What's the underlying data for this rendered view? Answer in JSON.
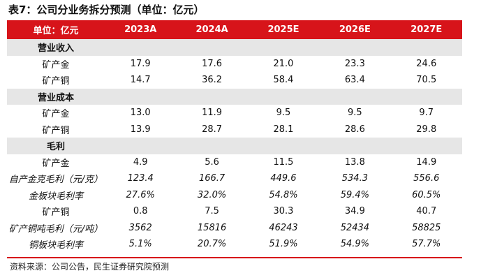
{
  "title": "表7：公司分业务拆分预测（单位：亿元）",
  "header": [
    "单位：亿元",
    "2023A",
    "2024A",
    "2025E",
    "2026E",
    "2027E"
  ],
  "rows": [
    {
      "kind": "section",
      "label": "营业收入",
      "values": [
        "",
        "",
        "",
        "",
        ""
      ]
    },
    {
      "kind": "data",
      "label": "矿产金",
      "values": [
        "17.9",
        "17.6",
        "21.0",
        "23.3",
        "24.6"
      ]
    },
    {
      "kind": "data",
      "label": "矿产铜",
      "values": [
        "14.7",
        "36.2",
        "58.4",
        "63.4",
        "70.5"
      ]
    },
    {
      "kind": "section",
      "label": "营业成本",
      "values": [
        "",
        "",
        "",
        "",
        ""
      ]
    },
    {
      "kind": "data",
      "label": "矿产金",
      "values": [
        "13.0",
        "11.9",
        "9.5",
        "9.5",
        "9.7"
      ]
    },
    {
      "kind": "data",
      "label": "矿产铜",
      "values": [
        "13.9",
        "28.7",
        "28.1",
        "28.6",
        "29.8"
      ]
    },
    {
      "kind": "section",
      "label": "毛利",
      "values": [
        "",
        "",
        "",
        "",
        ""
      ]
    },
    {
      "kind": "data",
      "label": "矿产金",
      "values": [
        "4.9",
        "5.6",
        "11.5",
        "13.8",
        "14.9"
      ]
    },
    {
      "kind": "italic",
      "label": "自产金克毛利（元/克）",
      "values": [
        "123.4",
        "166.7",
        "449.6",
        "534.3",
        "556.6"
      ]
    },
    {
      "kind": "italic",
      "label": "金板块毛利率",
      "values": [
        "27.6%",
        "32.0%",
        "54.8%",
        "59.4%",
        "60.5%"
      ]
    },
    {
      "kind": "data",
      "label": "矿产铜",
      "values": [
        "0.8",
        "7.5",
        "30.3",
        "34.9",
        "40.7"
      ]
    },
    {
      "kind": "italic",
      "label": "矿产铜吨毛利（元/吨）",
      "values": [
        "3562",
        "15816",
        "46243",
        "52434",
        "58825"
      ]
    },
    {
      "kind": "italic",
      "label": "铜板块毛利率",
      "values": [
        "5.1%",
        "20.7%",
        "51.9%",
        "54.9%",
        "57.7%"
      ]
    }
  ],
  "source": "资料来源：公司公告，民生证券研究院预测",
  "colors": {
    "header_bg": "#d7141a",
    "section_bg": "#e6e6e6",
    "header_text": "#ffffff"
  }
}
